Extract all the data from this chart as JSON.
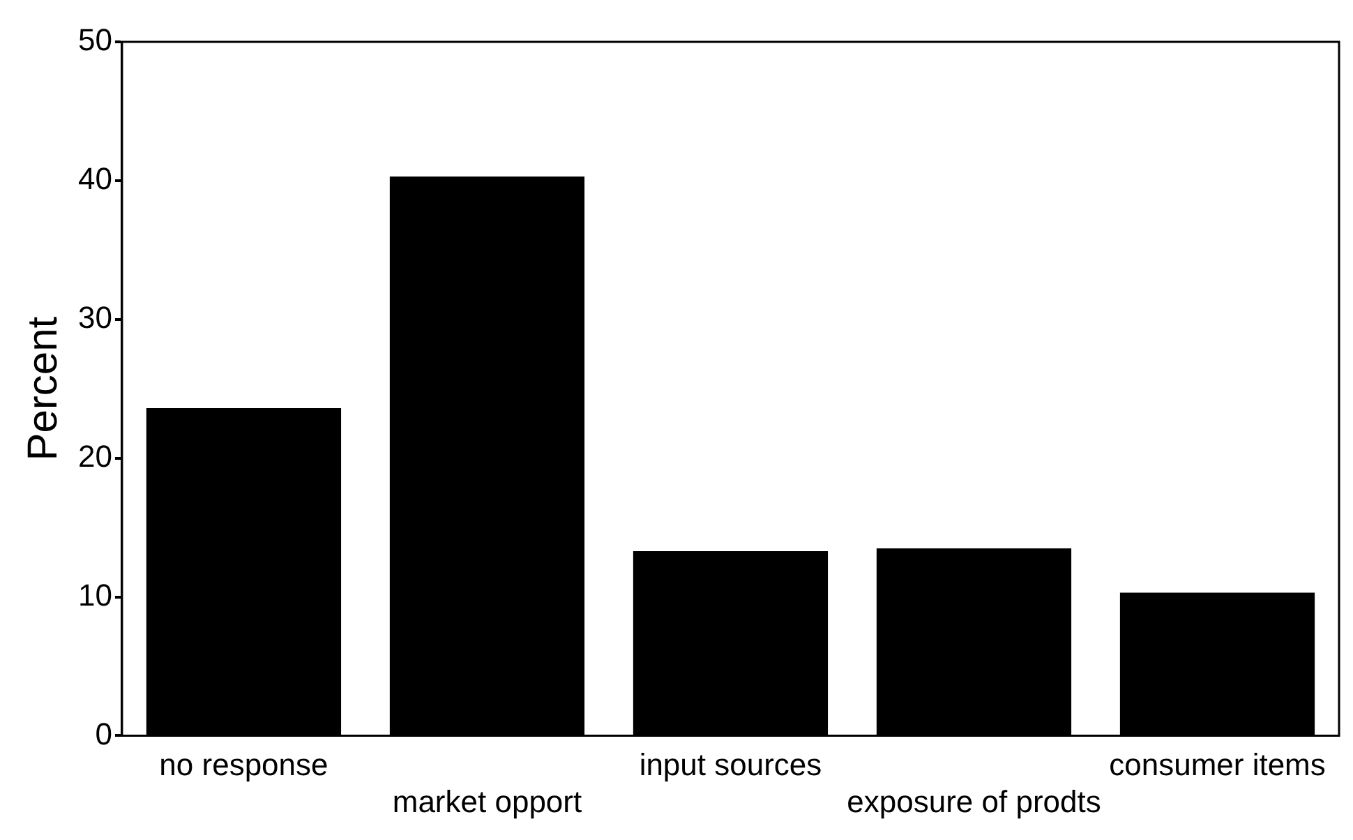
{
  "chart_data": {
    "type": "bar",
    "ylabel": "Percent",
    "categories": [
      "no response",
      "market opport",
      "input sources",
      "exposure of prodts",
      "consumer items"
    ],
    "values": [
      23.6,
      40.3,
      13.3,
      13.5,
      10.3
    ],
    "color": "#000000",
    "ylim": [
      0,
      50
    ],
    "yticks": [
      0,
      10,
      20,
      30,
      40,
      50
    ],
    "grid": false,
    "legend": false
  }
}
